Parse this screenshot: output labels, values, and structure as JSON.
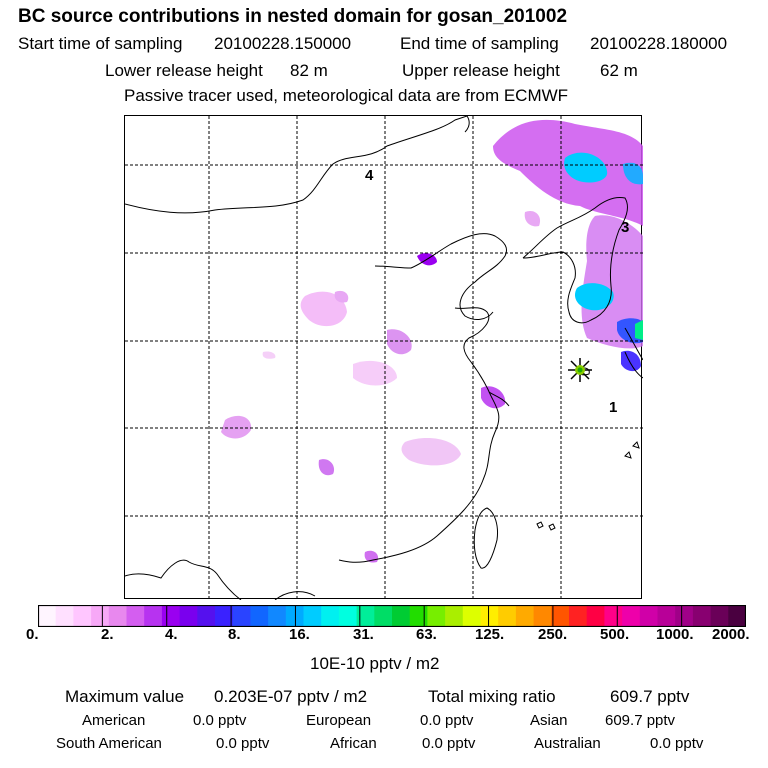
{
  "header": {
    "title": "BC  source contributions in nested domain for gosan_201002",
    "start_label": "Start time of sampling",
    "start_value": "20100228.150000",
    "end_label": "End time of sampling",
    "end_value": "20100228.180000",
    "lower_label": "Lower release height",
    "lower_value": "82 m",
    "upper_label": "Upper release height",
    "upper_value": "62 m",
    "note": "Passive tracer used, meteorological data are from ECMWF"
  },
  "map": {
    "labels": [
      "4",
      "3",
      "1"
    ],
    "receptor_icon": "star-marker-icon"
  },
  "colorbar": {
    "ticks": [
      "0.",
      "2.",
      "4.",
      "8.",
      "16.",
      "31.",
      "63.",
      "125.",
      "250.",
      "500.",
      "1000.",
      "2000."
    ],
    "colors": [
      "#fff5ff",
      "#ffe0ff",
      "#ffc6ff",
      "#f7a8f7",
      "#e888ee",
      "#d45ef0",
      "#b733f0",
      "#9a00f0",
      "#7a00ee",
      "#5511ee",
      "#3a22ff",
      "#2a44ff",
      "#1166ff",
      "#1188ff",
      "#00aaff",
      "#00ccff",
      "#00f0f0",
      "#00ffe0",
      "#00ee99",
      "#00dd66",
      "#00cc33",
      "#22dd00",
      "#77ee00",
      "#aaee00",
      "#ddff00",
      "#ffee00",
      "#ffcc00",
      "#ffaa00",
      "#ff8800",
      "#ff5500",
      "#ff2222",
      "#ff0044",
      "#ff0088",
      "#ee00aa",
      "#d000a8",
      "#b80098",
      "#a00088",
      "#880070",
      "#6a0058",
      "#4a0040"
    ],
    "unit": "10E-10 pptv / m2"
  },
  "summary": {
    "max_label": "Maximum value",
    "max_value": "0.203E-07 pptv / m2",
    "total_label": "Total mixing ratio",
    "total_value": "609.7 pptv",
    "regions": [
      {
        "name": "American",
        "value": "0.0 pptv"
      },
      {
        "name": "European",
        "value": "0.0 pptv"
      },
      {
        "name": "Asian",
        "value": "609.7 pptv"
      },
      {
        "name": "South American",
        "value": "0.0 pptv"
      },
      {
        "name": "African",
        "value": "0.0 pptv"
      },
      {
        "name": "Australian",
        "value": "0.0 pptv"
      }
    ]
  }
}
